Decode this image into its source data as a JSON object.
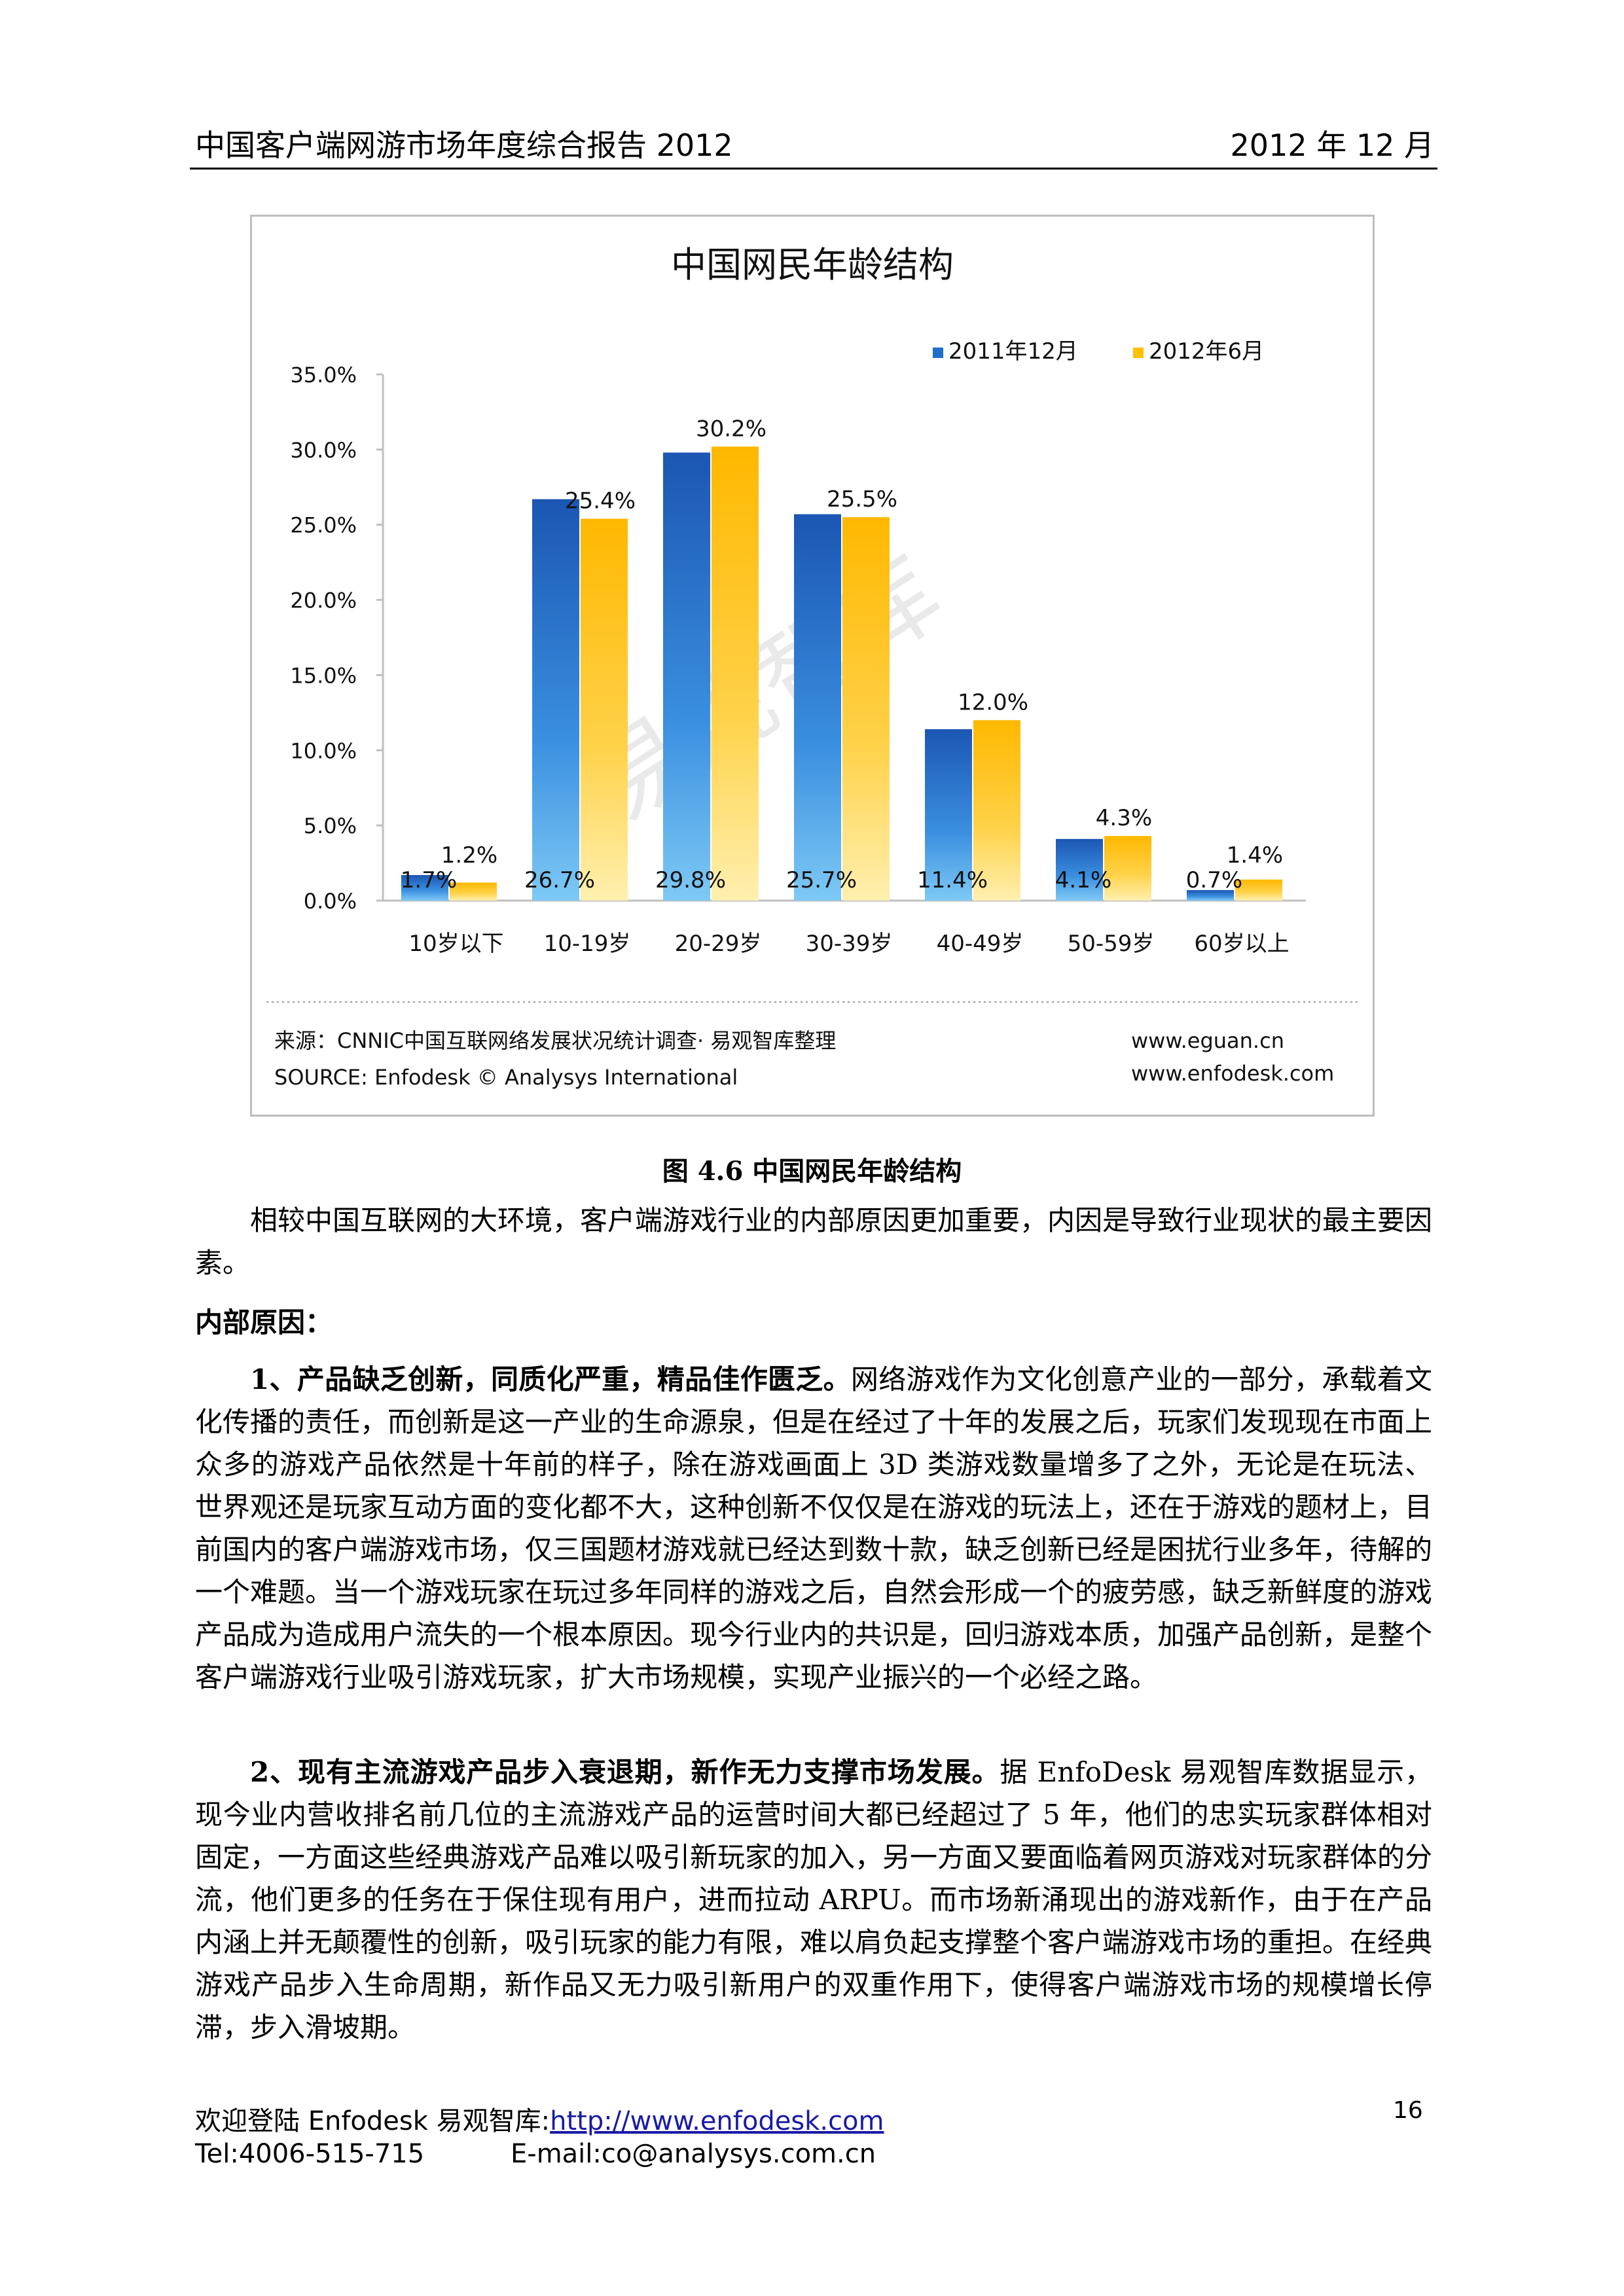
{
  "header": {
    "title": "中国客户端网游市场年度综合报告 2012",
    "date": "2012 年 12 月"
  },
  "chart_data": {
    "type": "bar",
    "title": "中国网民年龄结构",
    "categories": [
      "10岁以下",
      "10-19岁",
      "20-29岁",
      "30-39岁",
      "40-49岁",
      "50-59岁",
      "60岁以上"
    ],
    "series": [
      {
        "name": "2011年12月",
        "values": [
          1.7,
          26.7,
          29.8,
          25.7,
          11.4,
          4.1,
          0.7
        ],
        "labels": [
          "1.7%",
          "26.7%",
          "29.8%",
          "25.7%",
          "11.4%",
          "4.1%",
          "0.7%"
        ],
        "color": "#1f6fc9"
      },
      {
        "name": "2012年6月",
        "values": [
          1.2,
          25.4,
          30.2,
          25.5,
          12.0,
          4.3,
          1.4
        ],
        "labels": [
          "1.2%",
          "25.4%",
          "30.2%",
          "25.5%",
          "12.0%",
          "4.3%",
          "1.4%"
        ],
        "color": "#ffc000"
      }
    ],
    "yticks": [
      "0.0%",
      "5.0%",
      "10.0%",
      "15.0%",
      "20.0%",
      "25.0%",
      "30.0%",
      "35.0%"
    ],
    "ylim": [
      0,
      35
    ],
    "legend_position": "top-right",
    "watermark": "易观智库",
    "source": "来源：CNNIC中国互联网络发展状况统计调查· 易观智库整理",
    "source_en": "SOURCE: Enfodesk © Analysys International",
    "site1": "www.eguan.cn",
    "site2": "www.enfodesk.com"
  },
  "caption": "图 4.6  中国网民年龄结构",
  "paragraphs": {
    "p1": "相较中国互联网的大环境，客户端游戏行业的内部原因更加重要，内因是导致行业现状的最主要因素。",
    "heading": "内部原因：",
    "p2_bold": "1、产品缺乏创新，同质化严重，精品佳作匮乏。",
    "p2_text": "网络游戏作为文化创意产业的一部分，承载着文化传播的责任，而创新是这一产业的生命源泉，但是在经过了十年的发展之后，玩家们发现现在市面上众多的游戏产品依然是十年前的样子，除在游戏画面上 3D 类游戏数量增多了之外，无论是在玩法、世界观还是玩家互动方面的变化都不大，这种创新不仅仅是在游戏的玩法上，还在于游戏的题材上，目前国内的客户端游戏市场，仅三国题材游戏就已经达到数十款，缺乏创新已经是困扰行业多年，待解的一个难题。当一个游戏玩家在玩过多年同样的游戏之后，自然会形成一个的疲劳感，缺乏新鲜度的游戏产品成为造成用户流失的一个根本原因。现今行业内的共识是，回归游戏本质，加强产品创新，是整个客户端游戏行业吸引游戏玩家，扩大市场规模，实现产业振兴的一个必经之路。",
    "p3_bold": "2、现有主流游戏产品步入衰退期，新作无力支撑市场发展。",
    "p3_text": "据 EnfoDesk 易观智库数据显示，现今业内营收排名前几位的主流游戏产品的运营时间大都已经超过了 5 年，他们的忠实玩家群体相对固定，一方面这些经典游戏产品难以吸引新玩家的加入，另一方面又要面临着网页游戏对玩家群体的分流，他们更多的任务在于保住现有用户，进而拉动 ARPU。而市场新涌现出的游戏新作，由于在产品内涵上并无颠覆性的创新，吸引玩家的能力有限，难以肩负起支撑整个客户端游戏市场的重担。在经典游戏产品步入生命周期，新作品又无力吸引新用户的双重作用下，使得客户端游戏市场的规模增长停滞，步入滑坡期。"
  },
  "footer": {
    "welcome": "欢迎登陆 Enfodesk  易观智库:",
    "link": "http://www.enfodesk.com",
    "page": "16",
    "tel": "Tel:4006-515-715",
    "email": "E-mail:co@analysys.com.cn"
  }
}
